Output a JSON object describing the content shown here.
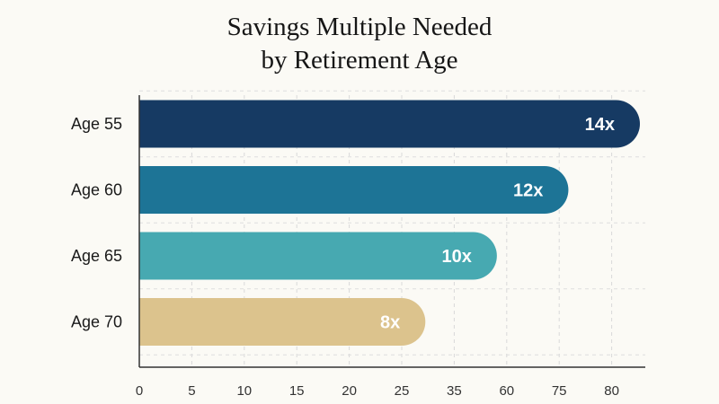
{
  "chart_data": {
    "type": "bar",
    "orientation": "horizontal",
    "title_lines": [
      "Savings Multiple Needed",
      "by Retirement Age"
    ],
    "categories": [
      "Age 55",
      "Age 60",
      "Age 65",
      "Age 70"
    ],
    "values": [
      14,
      12,
      10,
      8
    ],
    "value_labels": [
      "14x",
      "12x",
      "10x",
      "8x"
    ],
    "x_tick_labels": [
      "0",
      "5",
      "10",
      "15",
      "20",
      "25",
      "35",
      "60",
      "75",
      "80"
    ],
    "xlabel": "",
    "ylabel": "",
    "grid": true,
    "legend": "none",
    "colors": [
      "#163a63",
      "#1d7496",
      "#47a9b1",
      "#dcc38d"
    ]
  }
}
